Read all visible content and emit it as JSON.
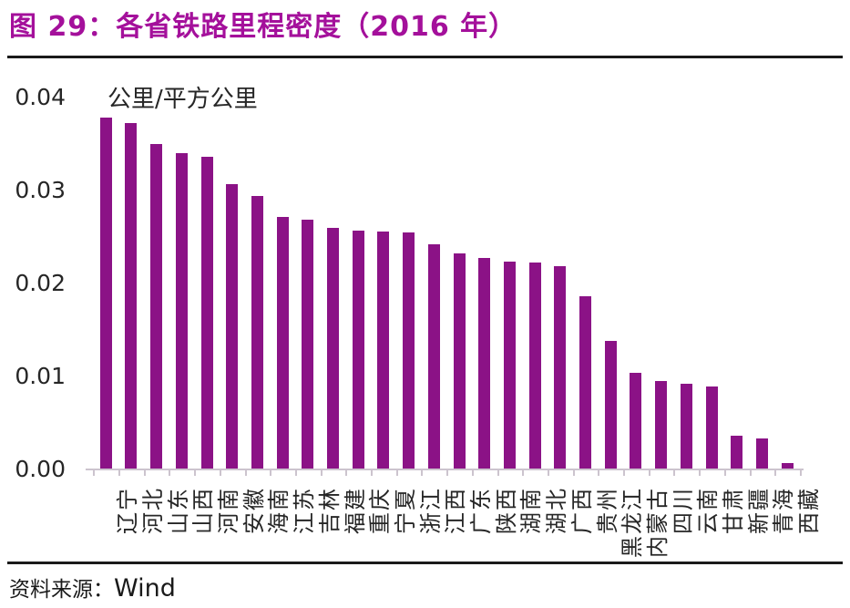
{
  "title": "图 29：各省铁路里程密度（2016 年）",
  "colors": {
    "title": "#A4109B",
    "bar": "#8B1286",
    "rule": "#1A1A1A",
    "axis": "#CCC4CE",
    "text": "#262626"
  },
  "source": {
    "prefix": "资料来源：",
    "name": "Wind"
  },
  "chart_data": {
    "type": "bar",
    "title": "各省铁路里程密度（2016 年）",
    "unit_label": "公里/平方公里",
    "xlabel": "",
    "ylabel": "公里/平方公里",
    "ylim": [
      0,
      0.04
    ],
    "ytick_values": [
      0,
      0.01,
      0.02,
      0.03,
      0.04
    ],
    "ytick_labels": [
      "0.00",
      "0.01",
      "0.02",
      "0.03",
      "0.04"
    ],
    "grid": false,
    "legend_position": "none",
    "bar_color": "#8B1286",
    "categories": [
      "辽宁",
      "河北",
      "山东",
      "山西",
      "河南",
      "安徽",
      "海南",
      "江苏",
      "吉林",
      "福建",
      "重庆",
      "宁夏",
      "浙江",
      "江西",
      "广东",
      "陕西",
      "湖南",
      "湖北",
      "广西",
      "贵州",
      "黑龙江",
      "内蒙古",
      "四川",
      "云南",
      "甘肃",
      "新疆",
      "青海",
      "西藏"
    ],
    "values": [
      0.0377,
      0.0372,
      0.0349,
      0.0339,
      0.0335,
      0.0306,
      0.0293,
      0.0271,
      0.0268,
      0.0259,
      0.0256,
      0.0255,
      0.0254,
      0.0241,
      0.0231,
      0.0226,
      0.0223,
      0.0222,
      0.0218,
      0.0185,
      0.0137,
      0.0103,
      0.0094,
      0.0091,
      0.0088,
      0.0035,
      0.0032,
      0.0006
    ]
  }
}
